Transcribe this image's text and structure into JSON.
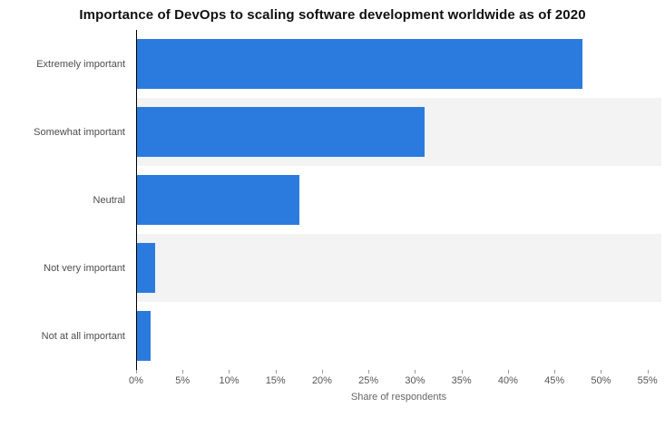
{
  "title": "Importance of DevOps to scaling software development worldwide as of 2020",
  "chart_data": {
    "type": "bar",
    "orientation": "horizontal",
    "title": "Importance of DevOps to scaling software development worldwide as of 2020",
    "categories": [
      "Extremely important",
      "Somewhat important",
      "Neutral",
      "Not very important",
      "Not at all important"
    ],
    "values": [
      48,
      31,
      17.5,
      2,
      1.5
    ],
    "unit": "%",
    "xlabel": "Share of respondents",
    "ylabel": "",
    "xlim": [
      0,
      55
    ],
    "xticks": [
      "0%",
      "5%",
      "10%",
      "15%",
      "20%",
      "25%",
      "30%",
      "35%",
      "40%",
      "45%",
      "50%",
      "55%"
    ],
    "grid": false,
    "legend": "none",
    "bar_color": "#2b7bde",
    "stripe_color": "#f3f3f3",
    "axis_line_color": "#000000"
  }
}
